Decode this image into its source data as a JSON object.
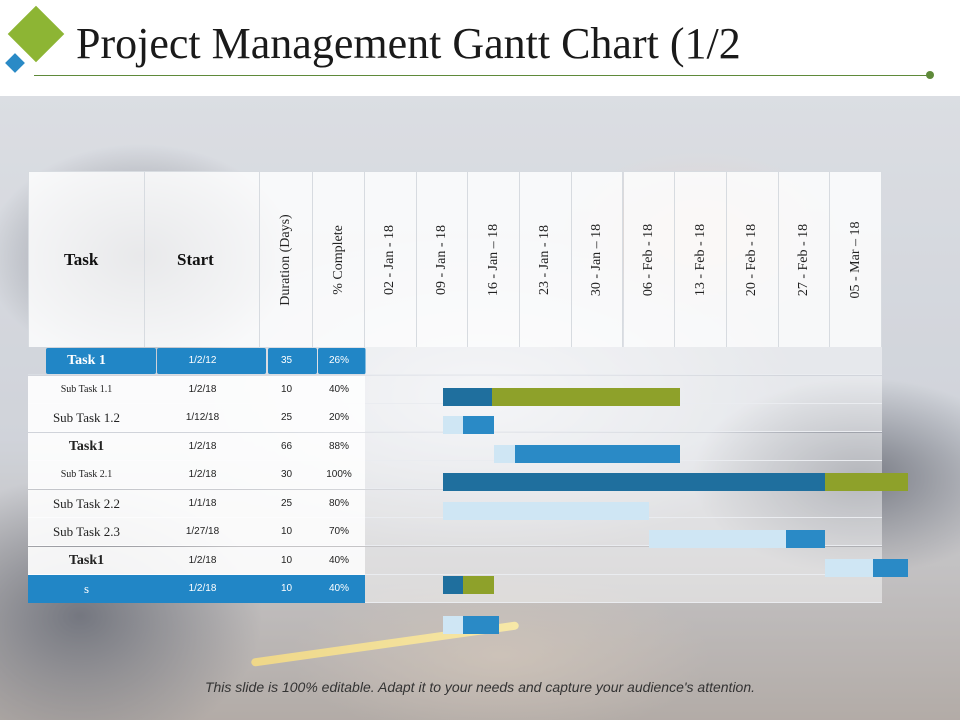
{
  "title": "Project Management Gantt Chart (1/2",
  "footer": "This slide is 100% editable. Adapt it to your needs and capture your audience's attention.",
  "colors": {
    "accent_green": "#8ea12a",
    "dark_blue": "#1f6f9e",
    "mid_blue": "#2a8ac6",
    "light_blue": "#cfe6f4",
    "header_blue": "#2186c6",
    "logo_green": "#8db534",
    "logo_blue": "#2a8ac6"
  },
  "table": {
    "headers": {
      "task": "Task",
      "start": "Start",
      "duration": "Duration (Days)",
      "complete": "% Complete"
    },
    "weeks": [
      "02 - Jan - 18",
      "09 - Jan - 18",
      "16 - Jan – 18",
      "23 - Jan - 18",
      "30 - Jan – 18",
      "06 - Feb - 18",
      "13 - Feb - 18",
      "20 - Feb - 18",
      "27 - Feb - 18",
      "05 - Mar – 18"
    ],
    "rows": [
      {
        "task": "Task 1",
        "start": "1/2/12",
        "duration": "35",
        "complete": "26%"
      },
      {
        "task": "Sub Task 1.1",
        "start": "1/2/18",
        "duration": "10",
        "complete": "40%"
      },
      {
        "task": "Sub Task 1.2",
        "start": "1/12/18",
        "duration": "25",
        "complete": "20%"
      },
      {
        "task": "Task1",
        "start": "1/2/18",
        "duration": "66",
        "complete": "88%"
      },
      {
        "task": "Sub Task 2.1",
        "start": "1/2/18",
        "duration": "30",
        "complete": "100%"
      },
      {
        "task": "Sub Task 2.2",
        "start": "1/1/18",
        "duration": "25",
        "complete": "80%"
      },
      {
        "task": "Sub Task 2.3",
        "start": "1/27/18",
        "duration": "10",
        "complete": "70%"
      },
      {
        "task": "Task1",
        "start": "1/2/18",
        "duration": "10",
        "complete": "40%"
      },
      {
        "task": "s",
        "start": "1/2/18",
        "duration": "10",
        "complete": "40%"
      }
    ]
  },
  "chart_data": {
    "type": "gantt",
    "x_unit": "weeks from 02 - Jan - 18",
    "xlim": [
      0,
      10
    ],
    "bars": [
      {
        "row": 1,
        "segments": [
          {
            "start": 1.5,
            "end": 2.45,
            "color": "dark_blue"
          },
          {
            "start": 2.45,
            "end": 6.1,
            "color": "accent_green"
          }
        ]
      },
      {
        "row": 2,
        "segments": [
          {
            "start": 1.5,
            "end": 1.9,
            "color": "light_blue"
          },
          {
            "start": 1.9,
            "end": 2.5,
            "color": "mid_blue"
          }
        ]
      },
      {
        "row": 3,
        "segments": [
          {
            "start": 2.5,
            "end": 2.9,
            "color": "light_blue"
          },
          {
            "start": 2.9,
            "end": 6.1,
            "color": "mid_blue"
          }
        ]
      },
      {
        "row": 4,
        "segments": [
          {
            "start": 1.5,
            "end": 8.9,
            "color": "dark_blue"
          },
          {
            "start": 8.9,
            "end": 10.5,
            "color": "accent_green"
          }
        ]
      },
      {
        "row": 5,
        "segments": [
          {
            "start": 1.5,
            "end": 5.5,
            "color": "light_blue"
          }
        ]
      },
      {
        "row": 6,
        "segments": [
          {
            "start": 5.5,
            "end": 8.15,
            "color": "light_blue"
          },
          {
            "start": 8.15,
            "end": 8.9,
            "color": "mid_blue"
          }
        ]
      },
      {
        "row": 7,
        "segments": [
          {
            "start": 8.9,
            "end": 9.82,
            "color": "light_blue"
          },
          {
            "start": 9.82,
            "end": 10.5,
            "color": "mid_blue"
          }
        ]
      },
      {
        "row": 8,
        "segments": [
          {
            "start": 1.5,
            "end": 1.9,
            "color": "dark_blue"
          },
          {
            "start": 1.9,
            "end": 2.5,
            "color": "accent_green"
          }
        ]
      },
      {
        "row": 9,
        "segments": [
          {
            "start": 1.5,
            "end": 1.9,
            "color": "light_blue"
          },
          {
            "start": 1.9,
            "end": 2.6,
            "color": "mid_blue"
          }
        ]
      }
    ]
  }
}
